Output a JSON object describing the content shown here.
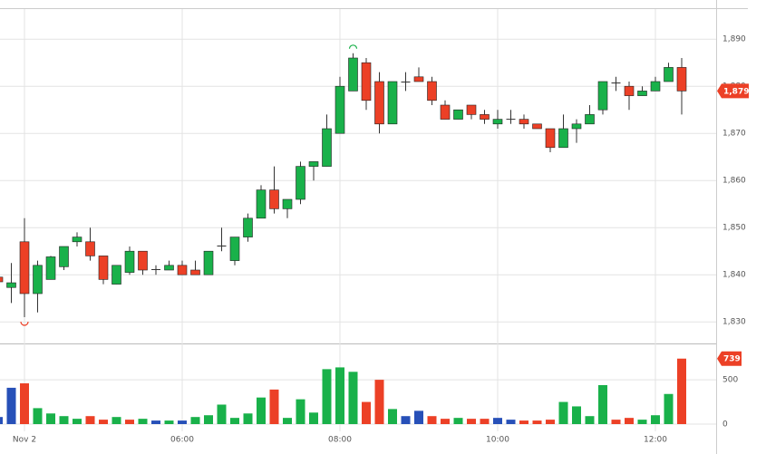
{
  "chart_data": {
    "type": "candlestick",
    "categories": [
      null,
      null,
      "Nov 2",
      null,
      null,
      null,
      null,
      null,
      null,
      null,
      null,
      null,
      null,
      null,
      "06:00",
      null,
      null,
      null,
      null,
      null,
      null,
      null,
      null,
      null,
      null,
      null,
      "08:00",
      null,
      null,
      null,
      null,
      null,
      null,
      null,
      null,
      null,
      null,
      null,
      "10:00",
      null,
      null,
      null,
      null,
      null,
      null,
      null,
      null,
      null,
      null,
      null,
      "12:00",
      null,
      null
    ],
    "open": [
      1839.5,
      1837.3,
      1847,
      1836,
      1839,
      1841.7,
      1847,
      1847,
      1844,
      1838,
      1840.5,
      1845,
      1841,
      1841,
      1842,
      1841,
      1840,
      1846,
      1843,
      1848,
      1852,
      1858,
      1854,
      1856,
      1863,
      1863,
      1870,
      1879,
      1885,
      1881,
      1872,
      1880.8,
      1882,
      1881,
      1876,
      1873,
      1876,
      1874,
      1872,
      1873,
      1873,
      1872,
      1871,
      1867,
      1871,
      1872,
      1875,
      1880.6,
      1880,
      1878,
      1879,
      1881,
      1884
    ],
    "high": [
      1840,
      1842.5,
      1852,
      1843,
      1844,
      1846,
      1849,
      1850,
      1844,
      1842,
      1846,
      1845,
      1842,
      1843,
      1843,
      1843,
      1845,
      1850,
      1848,
      1853,
      1859,
      1863,
      1856,
      1864,
      1864,
      1874,
      1882,
      1887,
      1886,
      1883,
      1881,
      1883,
      1884,
      1882,
      1877,
      1875,
      1876,
      1875,
      1875,
      1875,
      1874,
      1872,
      1871,
      1874,
      1873,
      1876,
      1881,
      1882,
      1881,
      1880,
      1882,
      1885,
      1886
    ],
    "low": [
      1838,
      1834,
      1831,
      1832,
      1839,
      1841,
      1846,
      1843,
      1838,
      1838,
      1840,
      1840,
      1840,
      1841,
      1840,
      1840,
      1840,
      1845,
      1842,
      1847,
      1852,
      1853,
      1852,
      1855,
      1860,
      1863,
      1870,
      1879,
      1875,
      1870,
      1872,
      1879,
      1881,
      1876,
      1873,
      1873,
      1873,
      1872,
      1871,
      1872,
      1871,
      1871,
      1866,
      1867,
      1868,
      1872,
      1874,
      1879,
      1875,
      1878,
      1879,
      1881,
      1874
    ],
    "close": [
      1838.5,
      1838.3,
      1836,
      1842,
      1843.8,
      1846,
      1848,
      1844,
      1839,
      1842,
      1845,
      1841,
      1841.2,
      1842,
      1840,
      1840,
      1845,
      1846.2,
      1848,
      1852,
      1858,
      1854,
      1856,
      1863,
      1864,
      1871,
      1880,
      1886,
      1877,
      1872,
      1881,
      1881,
      1881,
      1877,
      1873,
      1875,
      1874,
      1873,
      1873,
      1873.1,
      1872,
      1871,
      1867,
      1871,
      1872,
      1874,
      1881,
      1880.8,
      1878,
      1879,
      1881,
      1884,
      1879
    ],
    "close_label": "1,879",
    "up_color": "#19b14a",
    "down_color": "#ec4026",
    "ylim": [
      1826,
      1896
    ],
    "yticks": [
      {
        "value": 1830,
        "label": "1,830"
      },
      {
        "value": 1840,
        "label": "1,840"
      },
      {
        "value": 1850,
        "label": "1,850"
      },
      {
        "value": 1860,
        "label": "1,860"
      },
      {
        "value": 1870,
        "label": "1,870"
      },
      {
        "value": 1880,
        "label": "1,880"
      },
      {
        "value": 1890,
        "label": "1,890"
      }
    ],
    "volume": {
      "values": [
        80,
        410,
        460,
        180,
        120,
        90,
        60,
        90,
        50,
        80,
        50,
        60,
        40,
        40,
        40,
        80,
        100,
        220,
        70,
        120,
        300,
        390,
        70,
        280,
        130,
        620,
        640,
        590,
        250,
        500,
        170,
        90,
        150,
        90,
        60,
        70,
        60,
        60,
        70,
        50,
        40,
        40,
        50,
        250,
        200,
        90,
        440,
        50,
        70,
        50,
        100,
        340,
        739
      ],
      "colors": [
        "#2750b8",
        "#2750b8",
        "#ec4026",
        "#19b14a",
        "#19b14a",
        "#19b14a",
        "#19b14a",
        "#ec4026",
        "#ec4026",
        "#19b14a",
        "#ec4026",
        "#19b14a",
        "#2750b8",
        "#19b14a",
        "#2750b8",
        "#19b14a",
        "#19b14a",
        "#19b14a",
        "#19b14a",
        "#19b14a",
        "#19b14a",
        "#ec4026",
        "#19b14a",
        "#19b14a",
        "#19b14a",
        "#19b14a",
        "#19b14a",
        "#19b14a",
        "#ec4026",
        "#ec4026",
        "#19b14a",
        "#2750b8",
        "#2750b8",
        "#ec4026",
        "#ec4026",
        "#19b14a",
        "#ec4026",
        "#ec4026",
        "#2750b8",
        "#2750b8",
        "#ec4026",
        "#ec4026",
        "#ec4026",
        "#19b14a",
        "#19b14a",
        "#19b14a",
        "#19b14a",
        "#ec4026",
        "#ec4026",
        "#19b14a",
        "#19b14a",
        "#19b14a",
        "#ec4026"
      ],
      "y2lim": [
        0,
        900
      ],
      "y2ticks": [
        0,
        500
      ]
    },
    "grid": true
  }
}
